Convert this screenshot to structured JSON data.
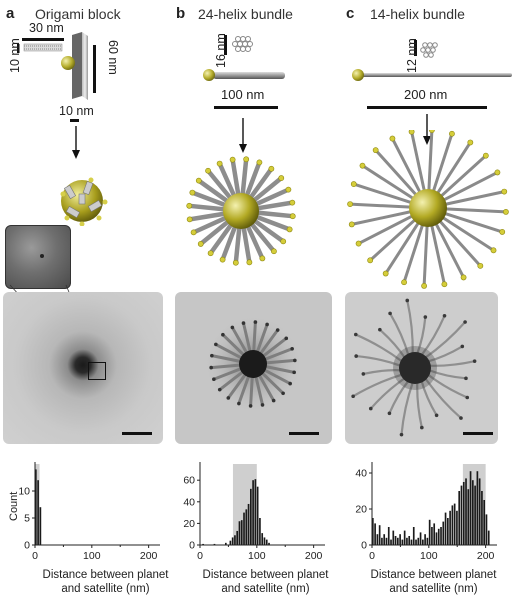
{
  "panels": [
    {
      "letter": "a",
      "title": "Origami block"
    },
    {
      "letter": "b",
      "title": "24-helix bundle"
    },
    {
      "letter": "c",
      "title": "14-helix bundle"
    }
  ],
  "dimensions": {
    "a_width": "30 nm",
    "a_height": "10 nm",
    "a_length": "60 nm",
    "a_particle": "10 nm",
    "b_diameter": "16 nm",
    "b_length": "100 nm",
    "c_diameter": "12 nm",
    "c_length": "200 nm"
  },
  "histograms": {
    "xlabel": "Distance between planet\nand satellite (nm)",
    "xlabel_line1": "Distance between planet",
    "xlabel_line2": "and satellite (nm)",
    "ylabel": "Count",
    "xticks": [
      "0",
      "100",
      "200"
    ]
  },
  "chart_data": [
    {
      "type": "bar",
      "panel": "a",
      "title": "",
      "xlabel": "Distance between planet and satellite (nm)",
      "ylabel": "Count",
      "xlim": [
        0,
        220
      ],
      "ylim": [
        0,
        15
      ],
      "yticks": [
        "0",
        "5",
        "10"
      ],
      "shaded_range": [
        0,
        8
      ],
      "bin_width": 4,
      "x": [
        2,
        6,
        10
      ],
      "values": [
        14,
        12,
        7
      ]
    },
    {
      "type": "bar",
      "panel": "b",
      "title": "",
      "xlabel": "Distance between planet and satellite (nm)",
      "ylabel": "",
      "xlim": [
        0,
        220
      ],
      "ylim": [
        0,
        75
      ],
      "yticks": [
        "0",
        "20",
        "40",
        "60"
      ],
      "shaded_range": [
        58,
        100
      ],
      "bin_width": 4,
      "x": [
        6,
        26,
        46,
        54,
        58,
        62,
        66,
        70,
        74,
        78,
        82,
        86,
        90,
        94,
        98,
        102,
        106,
        110,
        114,
        118,
        122
      ],
      "values": [
        1,
        1,
        2,
        4,
        7,
        9,
        13,
        22,
        23,
        30,
        33,
        38,
        52,
        60,
        61,
        54,
        25,
        11,
        7,
        5,
        2
      ]
    },
    {
      "type": "bar",
      "panel": "c",
      "title": "",
      "xlabel": "Distance between planet and satellite (nm)",
      "ylabel": "",
      "xlim": [
        0,
        220
      ],
      "ylim": [
        0,
        45
      ],
      "yticks": [
        "0",
        "20",
        "40"
      ],
      "shaded_range": [
        160,
        200
      ],
      "bin_width": 4,
      "x": [
        2,
        6,
        10,
        14,
        18,
        22,
        26,
        30,
        34,
        38,
        42,
        46,
        50,
        54,
        58,
        62,
        66,
        70,
        74,
        78,
        82,
        86,
        90,
        94,
        98,
        102,
        106,
        110,
        114,
        118,
        122,
        126,
        130,
        134,
        138,
        142,
        146,
        150,
        154,
        158,
        162,
        166,
        170,
        174,
        178,
        182,
        186,
        190,
        194,
        198,
        202,
        206
      ],
      "values": [
        15,
        12,
        6,
        11,
        4,
        6,
        4,
        10,
        3,
        8,
        5,
        4,
        6,
        3,
        8,
        4,
        5,
        3,
        10,
        3,
        4,
        7,
        3,
        6,
        4,
        14,
        10,
        12,
        7,
        9,
        10,
        13,
        18,
        15,
        19,
        22,
        23,
        19,
        30,
        33,
        35,
        37,
        31,
        41,
        36,
        33,
        41,
        37,
        30,
        25,
        17,
        8
      ]
    }
  ]
}
